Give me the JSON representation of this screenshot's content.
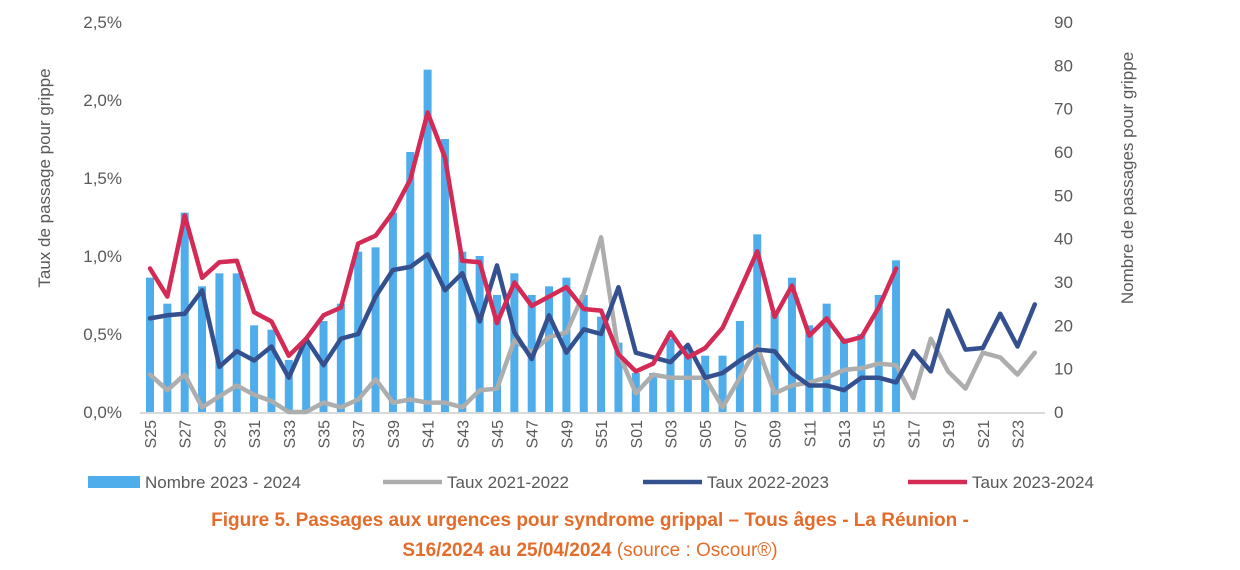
{
  "chart_data": {
    "type": "bar+line",
    "categories": [
      "S25",
      "S26",
      "S27",
      "S28",
      "S29",
      "S30",
      "S31",
      "S32",
      "S33",
      "S34",
      "S35",
      "S36",
      "S37",
      "S38",
      "S39",
      "S40",
      "S41",
      "S42",
      "S43",
      "S44",
      "S45",
      "S46",
      "S47",
      "S48",
      "S49",
      "S50",
      "S51",
      "S52",
      "S01",
      "S02",
      "S03",
      "S04",
      "S05",
      "S06",
      "S07",
      "S08",
      "S09",
      "S10",
      "S11",
      "S12",
      "S13",
      "S14",
      "S15",
      "S16",
      "S17",
      "S18",
      "S19",
      "S20",
      "S21",
      "S22",
      "S23",
      "S24"
    ],
    "ylabel_left": "Taux de passage pour grippe",
    "ylabel_right": "Nombre de passages pour grippe",
    "ylim_left": [
      0,
      2.5
    ],
    "yticks_left": [
      "0,0%",
      "0,5%",
      "1,0%",
      "1,5%",
      "2,0%",
      "2,5%"
    ],
    "ylim_right": [
      0,
      90
    ],
    "yticks_right": [
      "0",
      "10",
      "20",
      "30",
      "40",
      "50",
      "60",
      "70",
      "80",
      "90"
    ],
    "grid": false,
    "legend_position": "bottom",
    "series": [
      {
        "name": "Nombre 2023 - 2024",
        "type": "bar",
        "axis": "right",
        "color": "#4EADEA",
        "values": [
          31,
          25,
          46,
          29,
          32,
          32,
          20,
          19,
          12,
          16,
          21,
          25,
          37,
          38,
          46,
          60,
          79,
          63,
          37,
          36,
          27,
          32,
          27,
          29,
          31,
          27,
          22,
          16,
          9,
          9,
          17,
          15,
          13,
          13,
          21,
          41,
          23,
          31,
          20,
          25,
          17,
          18,
          27,
          35,
          null,
          null,
          null,
          null,
          null,
          null,
          null,
          null
        ]
      },
      {
        "name": "Taux 2021-2022",
        "type": "line",
        "axis": "left",
        "color": "#ADADAD",
        "values": [
          0.24,
          0.14,
          0.24,
          0.03,
          0.1,
          0.17,
          0.11,
          0.07,
          0.0,
          0.0,
          0.06,
          0.03,
          0.08,
          0.21,
          0.06,
          0.08,
          0.06,
          0.06,
          0.03,
          0.14,
          0.15,
          0.46,
          0.38,
          0.48,
          0.51,
          0.76,
          1.12,
          0.38,
          0.12,
          0.24,
          0.22,
          0.22,
          0.22,
          0.03,
          0.22,
          0.42,
          0.12,
          0.17,
          0.19,
          0.22,
          0.27,
          0.28,
          0.31,
          0.3,
          0.09,
          0.47,
          0.26,
          0.15,
          0.38,
          0.35,
          0.24,
          0.38
        ]
      },
      {
        "name": "Taux 2022-2023",
        "type": "line",
        "axis": "left",
        "color": "#35508F",
        "values": [
          0.6,
          0.62,
          0.63,
          0.78,
          0.29,
          0.39,
          0.33,
          0.42,
          0.22,
          0.47,
          0.3,
          0.47,
          0.5,
          0.74,
          0.91,
          0.93,
          1.01,
          0.78,
          0.89,
          0.58,
          0.94,
          0.51,
          0.34,
          0.62,
          0.38,
          0.53,
          0.5,
          0.8,
          0.38,
          0.35,
          0.32,
          0.43,
          0.22,
          0.25,
          0.33,
          0.4,
          0.39,
          0.25,
          0.17,
          0.17,
          0.14,
          0.22,
          0.22,
          0.19,
          0.39,
          0.26,
          0.65,
          0.4,
          0.41,
          0.63,
          0.42,
          0.69
        ]
      },
      {
        "name": "Taux 2023-2024",
        "type": "line",
        "axis": "left",
        "color": "#D42A56",
        "values": [
          0.92,
          0.74,
          1.26,
          0.86,
          0.96,
          0.97,
          0.64,
          0.58,
          0.36,
          0.47,
          0.62,
          0.67,
          1.08,
          1.13,
          1.28,
          1.49,
          1.92,
          1.63,
          0.97,
          0.96,
          0.57,
          0.83,
          0.68,
          0.74,
          0.8,
          0.66,
          0.65,
          0.37,
          0.26,
          0.31,
          0.51,
          0.35,
          0.41,
          0.54,
          0.78,
          1.03,
          0.61,
          0.81,
          0.49,
          0.6,
          0.45,
          0.48,
          0.67,
          0.92,
          null,
          null,
          null,
          null,
          null,
          null,
          null,
          null
        ]
      }
    ]
  },
  "caption": {
    "line1": "Figure 5. Passages aux urgences pour syndrome grippal – Tous âges - La Réunion -",
    "line2": "S16/2024 au 25/04/2024",
    "source": " (source : Oscour®)"
  }
}
